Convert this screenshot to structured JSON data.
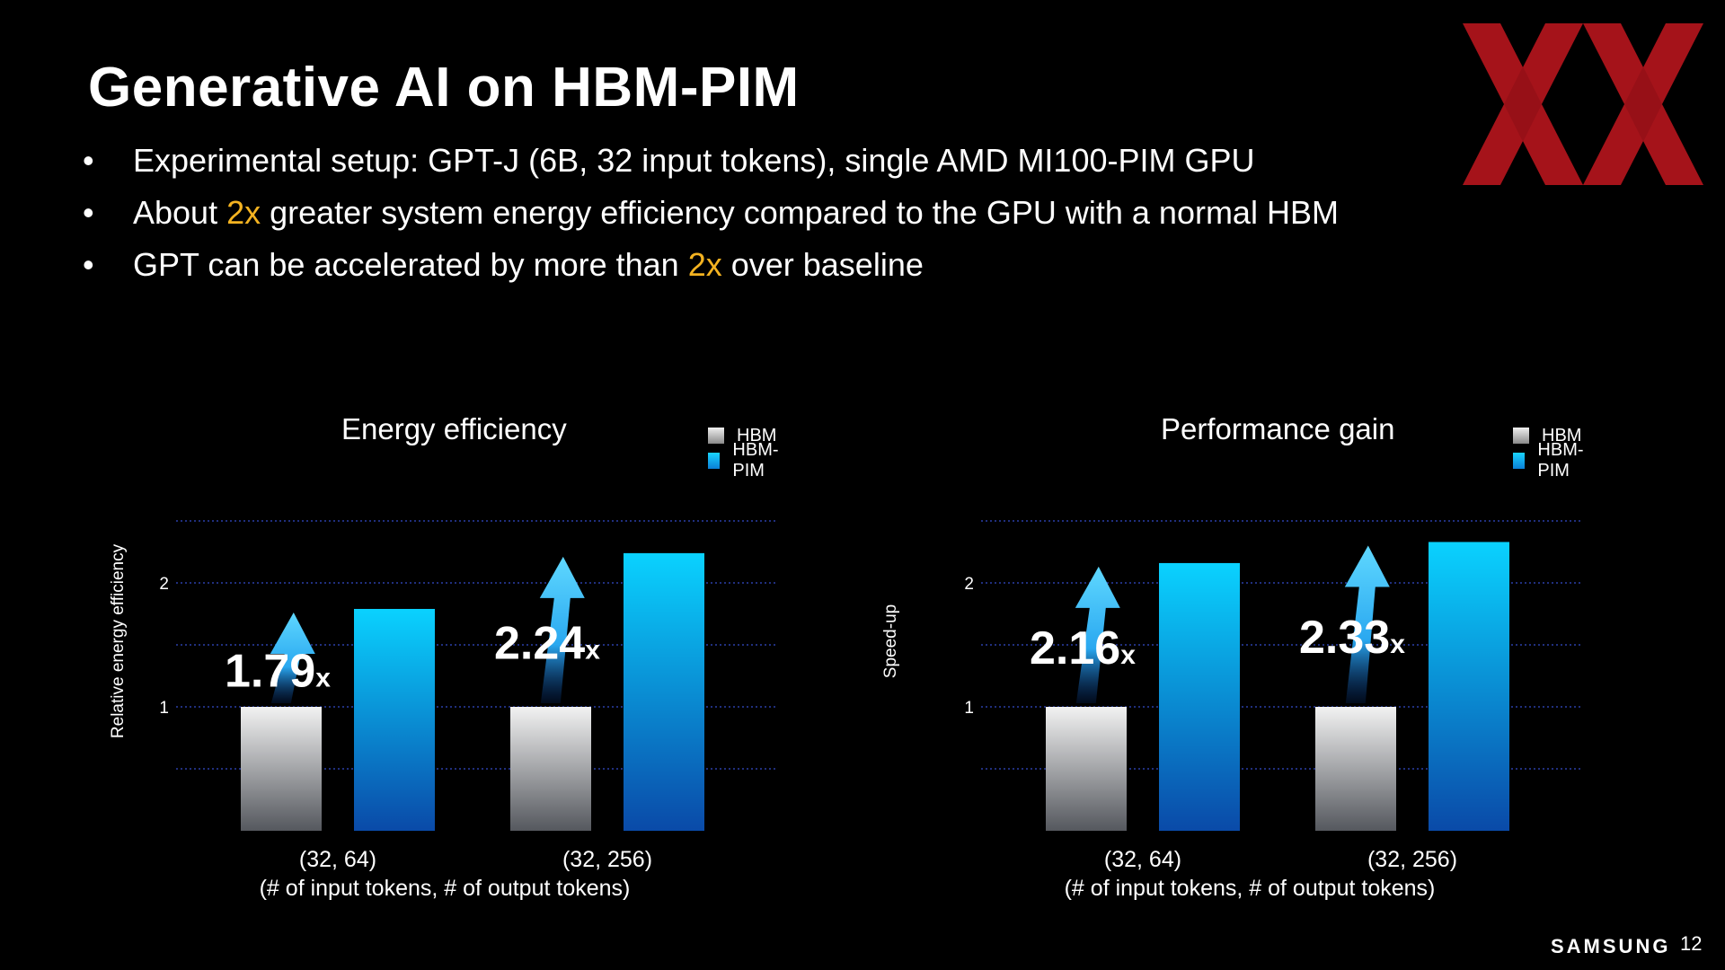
{
  "slide": {
    "title": "Generative AI on HBM-PIM",
    "bullets": [
      {
        "pre": "Experimental setup: GPT-J (6B, 32 input tokens), single AMD MI100-PIM GPU",
        "hl": "",
        "post": ""
      },
      {
        "pre": "About ",
        "hl": "2x",
        "post": " greater system energy efficiency compared to the GPU with a normal HBM"
      },
      {
        "pre": "GPT can be accelerated by more than ",
        "hl": "2x",
        "post": " over baseline"
      }
    ],
    "highlight_color": "#f4b321",
    "brand": "SAMSUNG",
    "page_number": "12"
  },
  "chart_data": [
    {
      "type": "bar",
      "title": "Energy efficiency",
      "ylabel": "Relative energy efficiency",
      "xlabel": "(# of input tokens, # of output tokens)",
      "categories": [
        "(32, 64)",
        "(32, 256)"
      ],
      "series": [
        {
          "name": "HBM",
          "values": [
            1,
            1
          ],
          "color": "#c8c8c8"
        },
        {
          "name": "HBM-PIM",
          "values": [
            1.79,
            2.24
          ],
          "color": "#0fb8f0"
        }
      ],
      "annotations": [
        {
          "value": "1.79",
          "suffix": "x"
        },
        {
          "value": "2.24",
          "suffix": "x"
        }
      ],
      "yticks": [
        "1",
        "2"
      ],
      "ylim": [
        0,
        2.5
      ],
      "grid": true,
      "legend_position": "top-right"
    },
    {
      "type": "bar",
      "title": "Performance gain",
      "ylabel": "Speed-up",
      "xlabel": "(# of input tokens, # of output tokens)",
      "categories": [
        "(32, 64)",
        "(32, 256)"
      ],
      "series": [
        {
          "name": "HBM",
          "values": [
            1,
            1
          ],
          "color": "#c8c8c8"
        },
        {
          "name": "HBM-PIM",
          "values": [
            2.16,
            2.33
          ],
          "color": "#0fb8f0"
        }
      ],
      "annotations": [
        {
          "value": "2.16",
          "suffix": "x"
        },
        {
          "value": "2.33",
          "suffix": "x"
        }
      ],
      "yticks": [
        "1",
        "2"
      ],
      "ylim": [
        0,
        2.5
      ],
      "grid": true,
      "legend_position": "top-right"
    }
  ]
}
